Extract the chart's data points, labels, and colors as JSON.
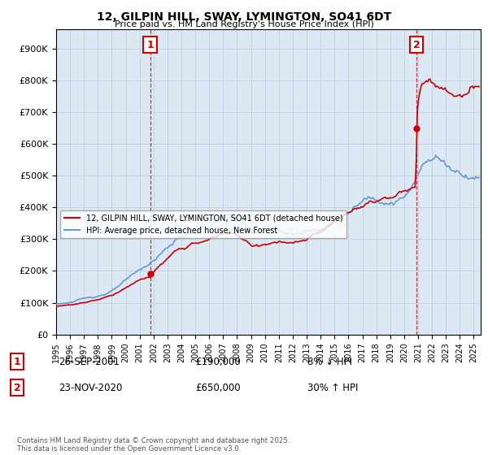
{
  "title": "12, GILPIN HILL, SWAY, LYMINGTON, SO41 6DT",
  "subtitle": "Price paid vs. HM Land Registry's House Price Index (HPI)",
  "ytick_values": [
    0,
    100000,
    200000,
    300000,
    400000,
    500000,
    600000,
    700000,
    800000,
    900000
  ],
  "ylim": [
    0,
    960000
  ],
  "xlim_start": 1995.0,
  "xlim_end": 2025.5,
  "hpi_color": "#6699cc",
  "price_color": "#cc0000",
  "chart_bg_color": "#dce9f5",
  "sale1_year": 2001.75,
  "sale1_price": 190000,
  "sale2_year": 2020.9,
  "sale2_price": 650000,
  "legend_line1": "12, GILPIN HILL, SWAY, LYMINGTON, SO41 6DT (detached house)",
  "legend_line2": "HPI: Average price, detached house, New Forest",
  "annotation1_label": "1",
  "annotation1_date": "26-SEP-2001",
  "annotation1_price": "£190,000",
  "annotation1_hpi": "8% ↓ HPI",
  "annotation2_label": "2",
  "annotation2_date": "23-NOV-2020",
  "annotation2_price": "£650,000",
  "annotation2_hpi": "30% ↑ HPI",
  "footer": "Contains HM Land Registry data © Crown copyright and database right 2025.\nThis data is licensed under the Open Government Licence v3.0.",
  "background_color": "#ffffff",
  "grid_color": "#bbccdd"
}
